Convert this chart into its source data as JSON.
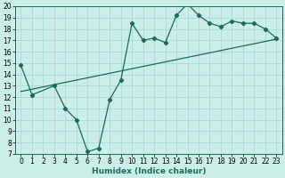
{
  "title": "",
  "xlabel": "Humidex (Indice chaleur)",
  "ylabel": "",
  "bg_color": "#cceee8",
  "line_color": "#1a6b5a",
  "grid_color": "#aaddda",
  "xlim": [
    -0.5,
    23.5
  ],
  "ylim": [
    7,
    20
  ],
  "yticks": [
    7,
    8,
    9,
    10,
    11,
    12,
    13,
    14,
    15,
    16,
    17,
    18,
    19,
    20
  ],
  "xticks": [
    0,
    1,
    2,
    3,
    4,
    5,
    6,
    7,
    8,
    9,
    10,
    11,
    12,
    13,
    14,
    15,
    16,
    17,
    18,
    19,
    20,
    21,
    22,
    23
  ],
  "curve1_x": [
    0,
    1,
    3,
    4,
    5,
    6,
    7,
    8,
    9,
    10,
    11,
    12,
    13,
    14,
    15,
    16,
    17,
    18,
    19,
    20,
    21,
    22,
    23
  ],
  "curve1_y": [
    14.8,
    12.2,
    13.0,
    11.0,
    10.0,
    7.2,
    7.5,
    11.8,
    13.5,
    18.5,
    17.0,
    17.2,
    16.8,
    19.2,
    20.2,
    19.2,
    18.5,
    18.2,
    18.7,
    18.5,
    18.5,
    18.0,
    17.2
  ],
  "curve2_x": [
    0,
    23
  ],
  "curve2_y": [
    12.5,
    17.1
  ],
  "tick_fontsize": 5.5,
  "xlabel_fontsize": 6.5
}
